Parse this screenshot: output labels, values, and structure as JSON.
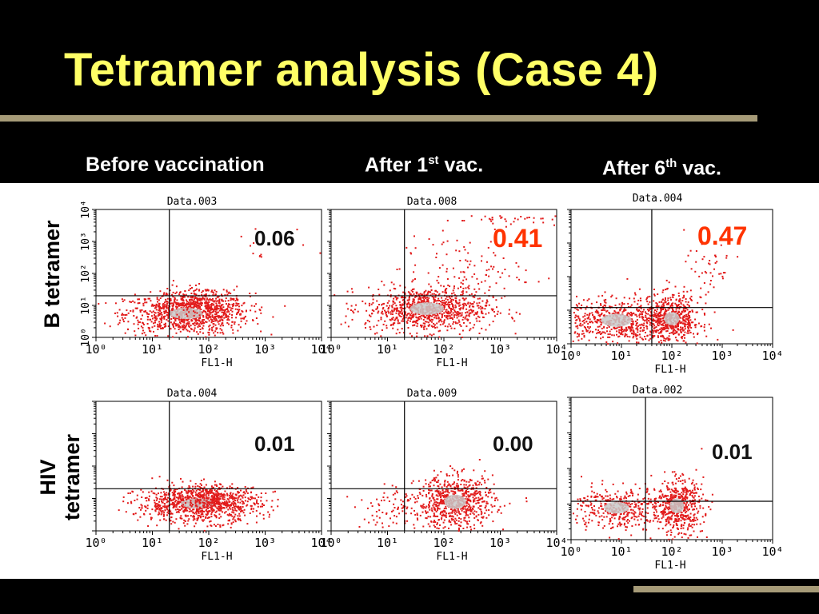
{
  "title": "Tetramer analysis (Case 4)",
  "column_headers": [
    {
      "text": "Before vaccination",
      "sup": "",
      "tail": ""
    },
    {
      "text": "After 1",
      "sup": "st",
      "tail": " vac."
    },
    {
      "text": "After 6",
      "sup": "th",
      "tail": " vac."
    }
  ],
  "row_labels": [
    "B tetramer",
    "HIV tetramer"
  ],
  "row_label_lines": [
    [
      "B tetramer"
    ],
    [
      "HIV",
      "tetramer"
    ]
  ],
  "colors": {
    "title": "#ffff66",
    "highlight": "#ff3300",
    "normal": "#111111",
    "dots": "#e21b1b"
  },
  "chart_data": [
    {
      "type": "scatter",
      "file": "Data.003",
      "xlabel": "FL1-H",
      "ylabel": "",
      "scale": "log",
      "xlim": [
        1,
        10000
      ],
      "ylim": [
        1,
        10000
      ],
      "x_ticks": [
        "10⁰",
        "10¹",
        "10²",
        "10³",
        "10⁴"
      ],
      "y_ticks": [
        "10⁰",
        "10¹",
        "10²",
        "10³",
        "10⁴"
      ],
      "quadrant_x": 20,
      "quadrant_y": 20,
      "percent": "0.06",
      "highlight": false
    },
    {
      "type": "scatter",
      "file": "Data.008",
      "xlabel": "FL1-H",
      "ylabel": "",
      "scale": "log",
      "xlim": [
        1,
        10000
      ],
      "ylim": [
        1,
        10000
      ],
      "x_ticks": [
        "10⁰",
        "10¹",
        "10²",
        "10³",
        "10⁴"
      ],
      "y_ticks": [],
      "quadrant_x": 20,
      "quadrant_y": 20,
      "percent": "0.41",
      "highlight": true
    },
    {
      "type": "scatter",
      "file": "Data.004",
      "xlabel": "FL1-H",
      "ylabel": "",
      "scale": "log",
      "xlim": [
        1,
        10000
      ],
      "ylim": [
        1,
        10000
      ],
      "x_ticks": [
        "10⁰",
        "10¹",
        "10²",
        "10³",
        "10⁴"
      ],
      "y_ticks": [],
      "quadrant_x": 40,
      "quadrant_y": 12,
      "percent": "0.47",
      "highlight": true
    },
    {
      "type": "scatter",
      "file": "Data.004",
      "xlabel": "FL1-H",
      "ylabel": "",
      "scale": "log",
      "xlim": [
        1,
        10000
      ],
      "ylim": [
        1,
        10000
      ],
      "x_ticks": [
        "10⁰",
        "10¹",
        "10²",
        "10³",
        "10⁴"
      ],
      "y_ticks": [],
      "quadrant_x": 20,
      "quadrant_y": 20,
      "percent": "0.01",
      "highlight": false
    },
    {
      "type": "scatter",
      "file": "Data.009",
      "xlabel": "FL1-H",
      "ylabel": "",
      "scale": "log",
      "xlim": [
        1,
        10000
      ],
      "ylim": [
        1,
        10000
      ],
      "x_ticks": [
        "10⁰",
        "10¹",
        "10²",
        "10³",
        "10⁴"
      ],
      "y_ticks": [],
      "quadrant_x": 20,
      "quadrant_y": 20,
      "percent": "0.00",
      "highlight": false
    },
    {
      "type": "scatter",
      "file": "Data.002",
      "xlabel": "FL1-H",
      "ylabel": "",
      "scale": "log",
      "xlim": [
        1,
        10000
      ],
      "ylim": [
        1,
        10000
      ],
      "x_ticks": [
        "10⁰",
        "10¹",
        "10²",
        "10³",
        "10⁴"
      ],
      "y_ticks": [],
      "quadrant_x": 30,
      "quadrant_y": 12,
      "percent": "0.01",
      "highlight": false
    }
  ]
}
